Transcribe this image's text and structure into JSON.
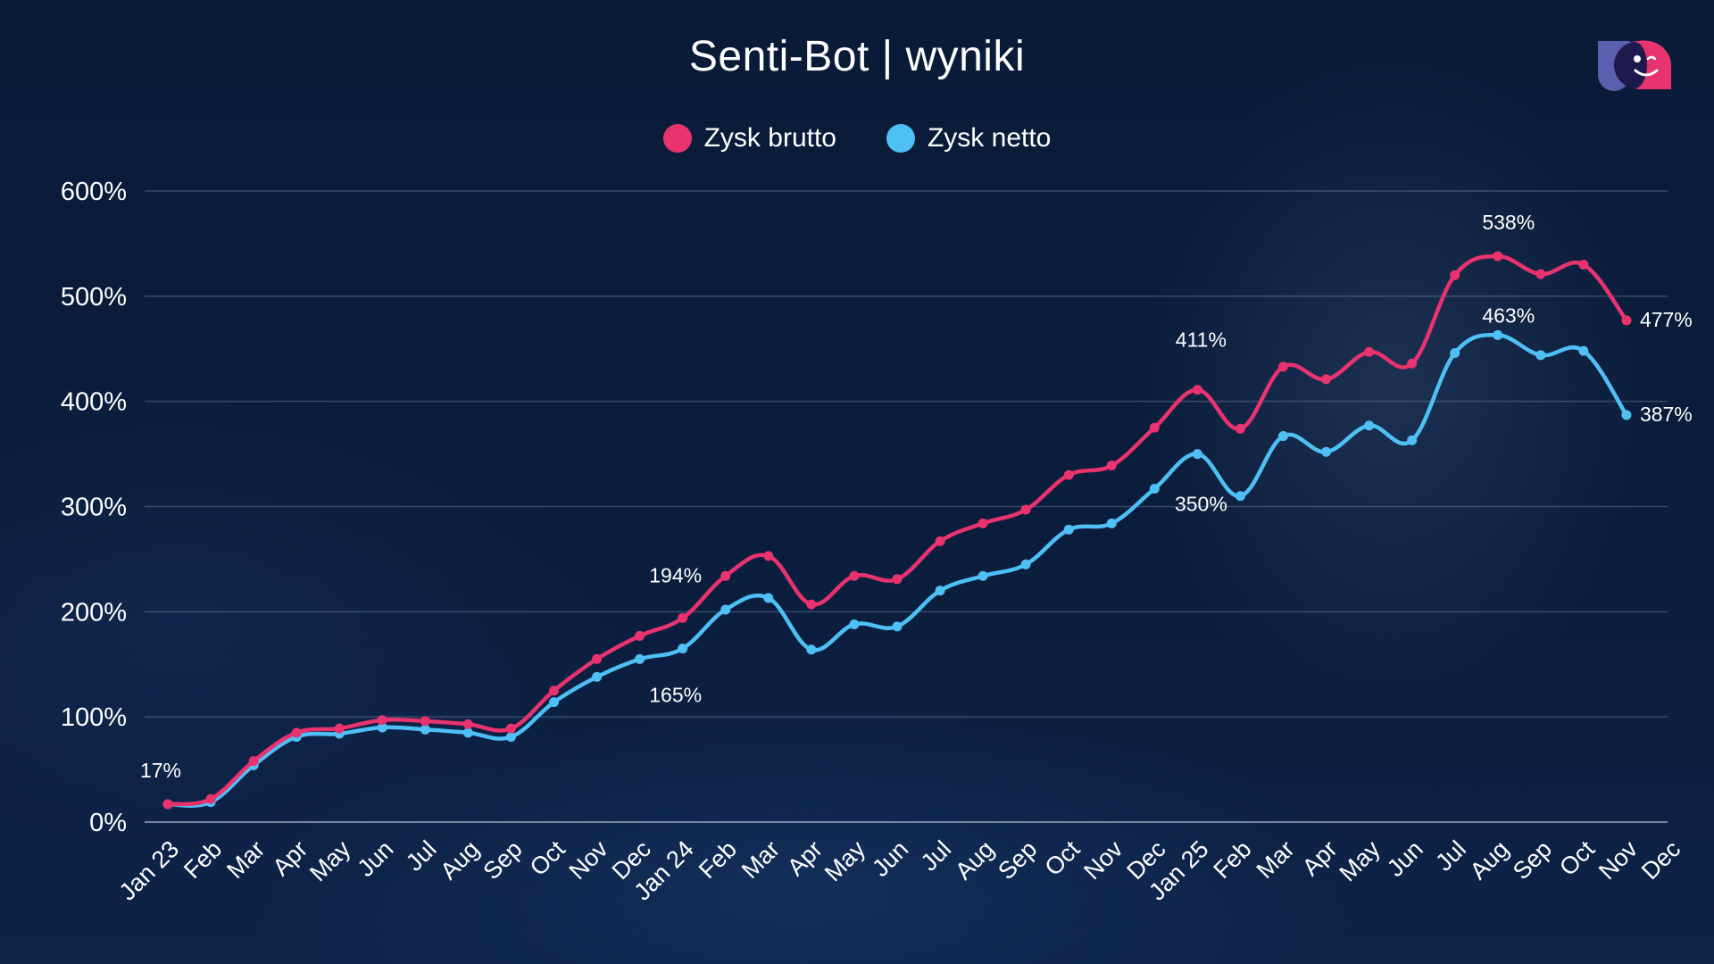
{
  "title": "Senti-Bot | wyniki",
  "logo": {
    "icon": "smiley-chat-bubbles-logo",
    "colors": [
      "#5b5fb0",
      "#e8336f",
      "#1e1a4d"
    ]
  },
  "legend": [
    {
      "label": "Zysk brutto",
      "color": "#e8336f"
    },
    {
      "label": "Zysk netto",
      "color": "#4fc0f5"
    }
  ],
  "chart_data": {
    "type": "line",
    "title": "Senti-Bot | wyniki",
    "xlabel": "",
    "ylabel": "",
    "ylim": [
      0,
      600
    ],
    "yticks": [
      "0%",
      "100%",
      "200%",
      "300%",
      "400%",
      "500%",
      "600%"
    ],
    "grid": true,
    "legend_position": "top-center",
    "categories": [
      "Jan 23",
      "Feb",
      "Mar",
      "Apr",
      "May",
      "Jun",
      "Jul",
      "Aug",
      "Sep",
      "Oct",
      "Nov",
      "Dec",
      "Jan 24",
      "Feb",
      "Mar",
      "Apr",
      "May",
      "Jun",
      "Jul",
      "Aug",
      "Sep",
      "Oct",
      "Nov",
      "Dec",
      "Jan 25",
      "Feb",
      "Mar",
      "Apr",
      "May",
      "Jun",
      "Jul",
      "Aug",
      "Sep",
      "Oct",
      "Nov",
      "Dec"
    ],
    "series": [
      {
        "name": "Zysk brutto",
        "color": "#e8336f",
        "values": [
          17,
          22,
          58,
          85,
          89,
          97,
          96,
          93,
          89,
          125,
          155,
          177,
          194,
          234,
          253,
          207,
          234,
          231,
          267,
          284,
          297,
          330,
          339,
          375,
          411,
          374,
          433,
          421,
          447,
          436,
          520,
          538,
          521,
          530,
          477,
          null
        ]
      },
      {
        "name": "Zysk netto",
        "color": "#4fc0f5",
        "values": [
          17,
          19,
          54,
          81,
          84,
          90,
          88,
          85,
          81,
          114,
          138,
          155,
          165,
          202,
          213,
          164,
          188,
          186,
          220,
          234,
          245,
          278,
          284,
          317,
          350,
          310,
          367,
          352,
          377,
          363,
          446,
          463,
          444,
          448,
          387,
          null
        ]
      }
    ],
    "annotations": [
      {
        "series": "Zysk netto",
        "index": 0,
        "text": "17%"
      },
      {
        "series": "Zysk brutto",
        "index": 12,
        "text": "194%"
      },
      {
        "series": "Zysk netto",
        "index": 12,
        "text": "165%"
      },
      {
        "series": "Zysk brutto",
        "index": 24,
        "text": "411%"
      },
      {
        "series": "Zysk netto",
        "index": 24,
        "text": "350%"
      },
      {
        "series": "Zysk brutto",
        "index": 31,
        "text": "538%"
      },
      {
        "series": "Zysk netto",
        "index": 31,
        "text": "463%"
      },
      {
        "series": "Zysk brutto",
        "index": 34,
        "text": "477%"
      },
      {
        "series": "Zysk netto",
        "index": 34,
        "text": "387%"
      }
    ]
  }
}
